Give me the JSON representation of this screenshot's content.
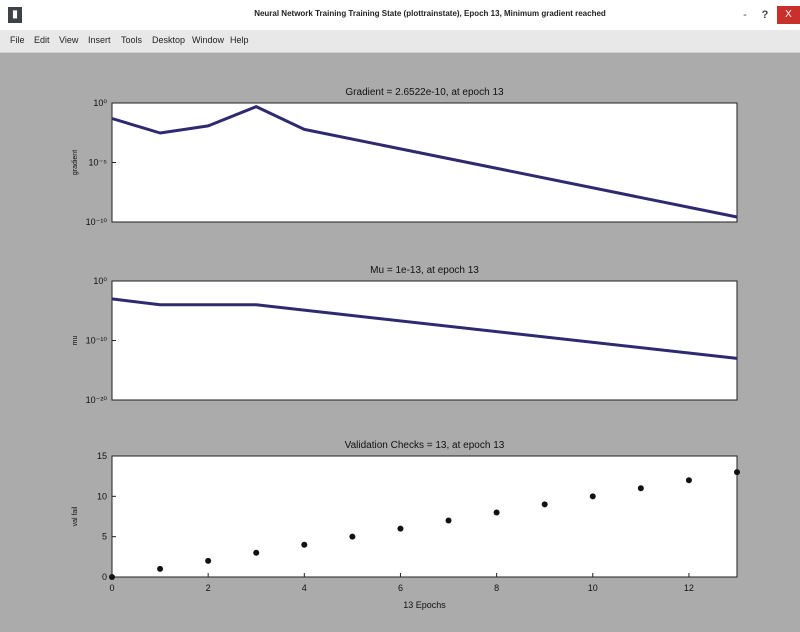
{
  "window": {
    "title": "Neural Network Training Training State (plottrainstate), Epoch 13, Minimum gradient reached",
    "icon": "matlab-figure-icon",
    "min": "-",
    "help": "?",
    "close": "X"
  },
  "menu": [
    "File",
    "Edit",
    "View",
    "Insert",
    "Tools",
    "Desktop",
    "Window",
    "Help"
  ],
  "chart_data": [
    {
      "type": "line",
      "title": "Gradient = 2.6522e-10, at epoch 13",
      "ylabel": "gradient",
      "yscale": "log",
      "ylim": [
        1e-10,
        1.0
      ],
      "yticks": [
        "10⁰",
        "10⁻⁵",
        "10⁻¹⁰"
      ],
      "xlim": [
        0,
        13
      ],
      "x": [
        0,
        1,
        2,
        3,
        4,
        13
      ],
      "y": [
        0.05,
        0.003,
        0.012,
        0.5,
        0.006,
        2.65e-10
      ],
      "line_color": "#2e2a6f"
    },
    {
      "type": "line",
      "title": "Mu = 1e-13, at epoch 13",
      "ylabel": "mu",
      "yscale": "log",
      "ylim": [
        1e-20,
        1.0
      ],
      "yticks": [
        "10⁰",
        "10⁻¹⁰",
        "10⁻²⁰"
      ],
      "xlim": [
        0,
        13
      ],
      "x": [
        0,
        1,
        3,
        13
      ],
      "y": [
        0.001,
        0.0001,
        0.0001,
        1e-13
      ],
      "line_color": "#2e2a6f"
    },
    {
      "type": "scatter",
      "title": "Validation Checks = 13, at epoch 13",
      "ylabel": "val fail",
      "xlabel": "13 Epochs",
      "ylim": [
        0,
        15
      ],
      "yticks": [
        "15",
        "10",
        "5",
        "0"
      ],
      "xlim": [
        0,
        13
      ],
      "xticks": [
        "0",
        "2",
        "4",
        "6",
        "8",
        "10",
        "12"
      ],
      "x": [
        0,
        1,
        2,
        3,
        4,
        5,
        6,
        7,
        8,
        9,
        10,
        11,
        12,
        13
      ],
      "y": [
        0,
        1,
        2,
        3,
        4,
        5,
        6,
        7,
        8,
        9,
        10,
        11,
        12,
        13
      ],
      "marker_color": "#111111"
    }
  ]
}
